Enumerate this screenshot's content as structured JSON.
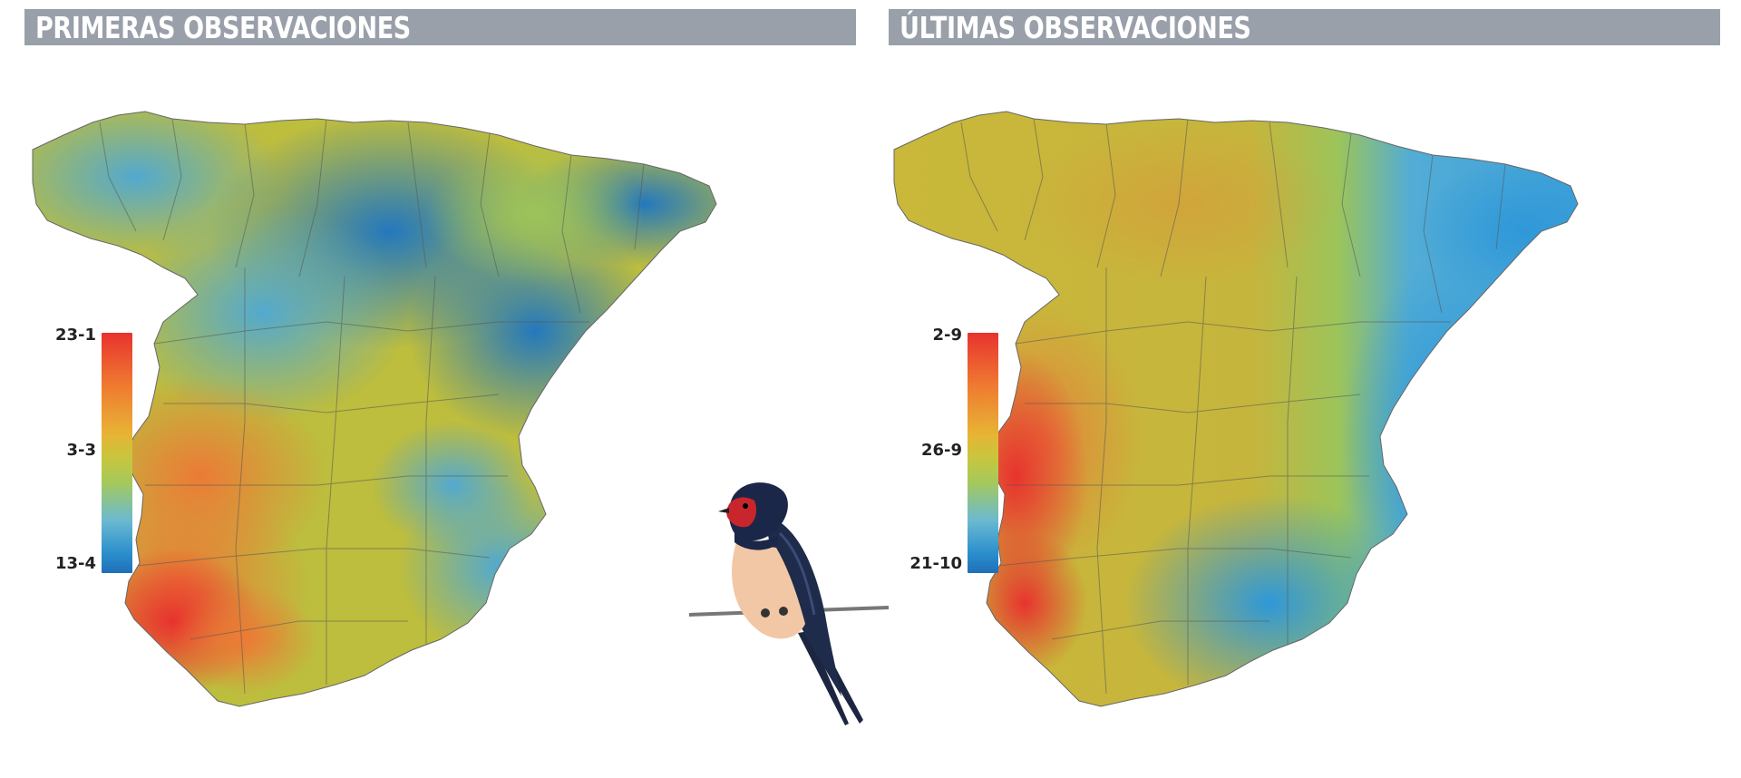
{
  "panels": {
    "left": {
      "title": "PRIMERAS OBSERVACIONES",
      "legend": {
        "top": "23-1",
        "middle": "3-3",
        "bottom": "13-4"
      }
    },
    "right": {
      "title": "ÚLTIMAS OBSERVACIONES",
      "legend": {
        "top": "2-9",
        "middle": "26-9",
        "bottom": "21-10"
      }
    }
  },
  "colors": {
    "header_background": "#99a0aa",
    "red": "#e8332e",
    "orange": "#ef7a30",
    "yellow": "#c9b83a",
    "green": "#a6c95a",
    "light_blue": "#6bbad0",
    "blue": "#1f6fb8"
  },
  "icons": {
    "illustration": "barn-swallow-on-wire"
  }
}
